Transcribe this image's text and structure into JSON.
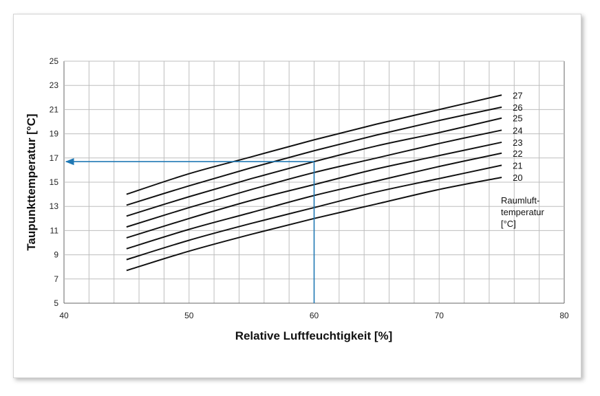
{
  "chart_data": {
    "type": "line",
    "xlabel": "Relative Luftfeuchtigkeit [%]",
    "ylabel": "Taupunkttemperatur [°C]",
    "xlim": [
      40,
      80
    ],
    "ylim": [
      5,
      25
    ],
    "xticks": [
      40,
      50,
      60,
      70,
      80
    ],
    "yticks": [
      5,
      7,
      9,
      11,
      13,
      15,
      17,
      19,
      21,
      23,
      25
    ],
    "grid": true,
    "x": [
      45,
      50,
      55,
      60,
      65,
      70,
      75
    ],
    "series": [
      {
        "name": "20",
        "values": [
          7.7,
          9.3,
          10.7,
          12.0,
          13.2,
          14.4,
          15.4
        ]
      },
      {
        "name": "21",
        "values": [
          8.6,
          10.2,
          11.6,
          12.9,
          14.2,
          15.3,
          16.4
        ]
      },
      {
        "name": "22",
        "values": [
          9.5,
          11.1,
          12.5,
          13.9,
          15.1,
          16.3,
          17.4
        ]
      },
      {
        "name": "23",
        "values": [
          10.4,
          12.0,
          13.5,
          14.8,
          16.1,
          17.2,
          18.3
        ]
      },
      {
        "name": "24",
        "values": [
          11.3,
          12.9,
          14.4,
          15.8,
          17.0,
          18.2,
          19.3
        ]
      },
      {
        "name": "25",
        "values": [
          12.2,
          13.8,
          15.3,
          16.7,
          18.0,
          19.1,
          20.3
        ]
      },
      {
        "name": "26",
        "values": [
          13.1,
          14.7,
          16.2,
          17.6,
          18.9,
          20.1,
          21.2
        ]
      },
      {
        "name": "27",
        "values": [
          14.0,
          15.7,
          17.1,
          18.5,
          19.8,
          21.0,
          22.2
        ]
      }
    ],
    "example": {
      "x": 60,
      "y": 16.7,
      "color": "#1f78b4"
    },
    "legend_title": [
      "Raumluft-",
      "temperatur",
      "[°C]"
    ],
    "line_color": "#111111",
    "grid_color": "#bdbdbd"
  }
}
